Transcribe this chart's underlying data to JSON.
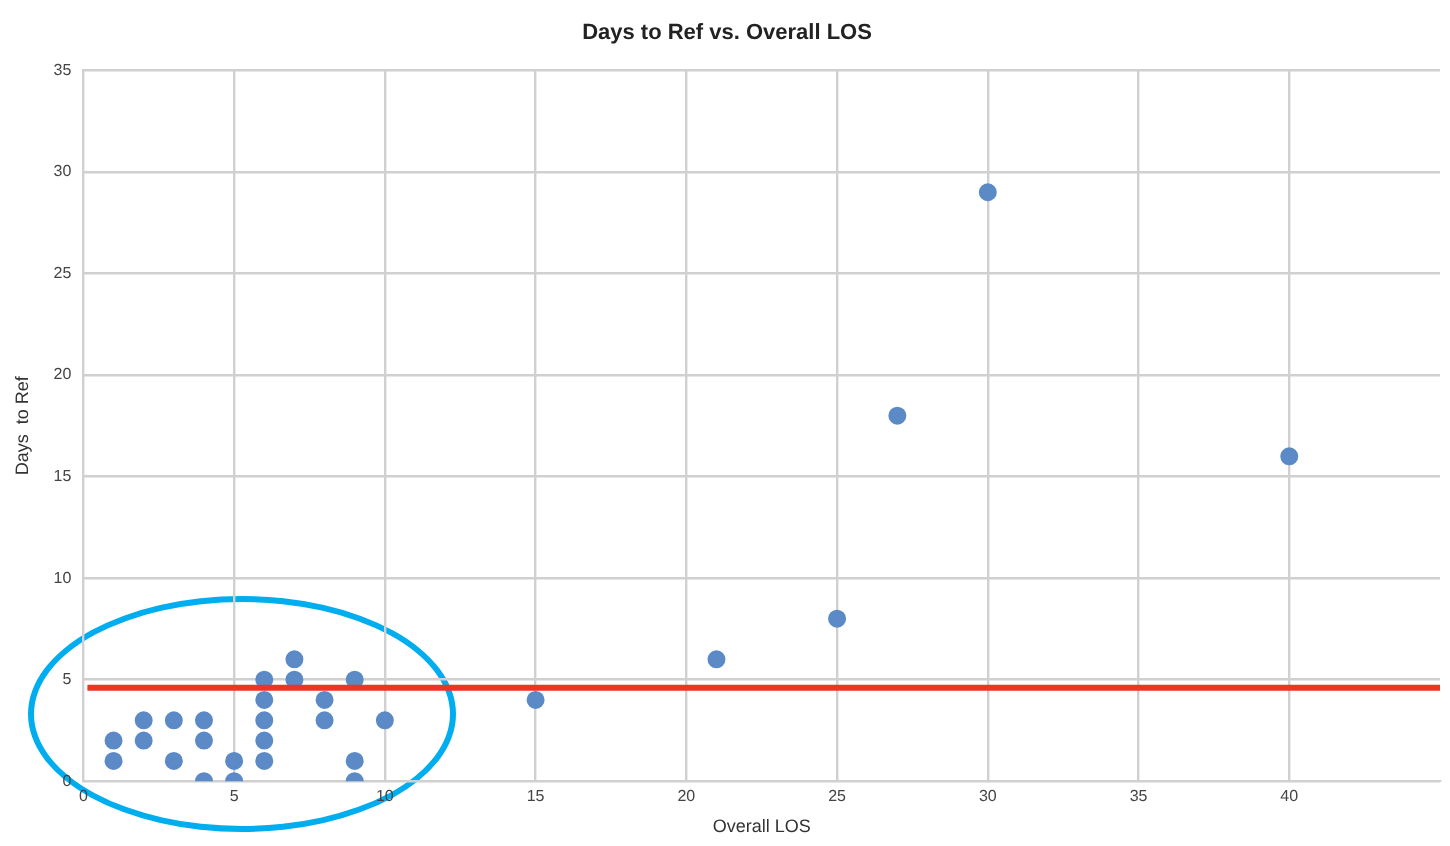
{
  "chart_data": {
    "type": "scatter",
    "title": "Days to Ref vs. Overall LOS",
    "xlabel": "Overall LOS",
    "ylabel": "Days  to Ref",
    "x": [
      1,
      1,
      2,
      2,
      3,
      3,
      4,
      4,
      4,
      5,
      5,
      6,
      6,
      6,
      6,
      6,
      7,
      7,
      8,
      8,
      9,
      9,
      9,
      10,
      15,
      21,
      25,
      27,
      30,
      40
    ],
    "series": [
      {
        "color": "#5b8ac6",
        "values": [
          1,
          2,
          2,
          3,
          1,
          3,
          0,
          2,
          3,
          0,
          1,
          1,
          2,
          3,
          4,
          5,
          5,
          6,
          3,
          4,
          0,
          1,
          5,
          3,
          4,
          6,
          8,
          18,
          29,
          16
        ]
      }
    ],
    "xlim": [
      0,
      45
    ],
    "xticks": [
      0,
      5,
      10,
      15,
      20,
      25,
      30,
      35,
      40
    ],
    "ylim": [
      0,
      35
    ],
    "yticks": [
      0,
      5,
      10,
      15,
      20,
      25,
      30,
      35
    ],
    "grid": true,
    "marker": "circle",
    "ref_lines": [
      {
        "axis": "y",
        "value": 4.6,
        "color": "#ee3524"
      }
    ]
  }
}
